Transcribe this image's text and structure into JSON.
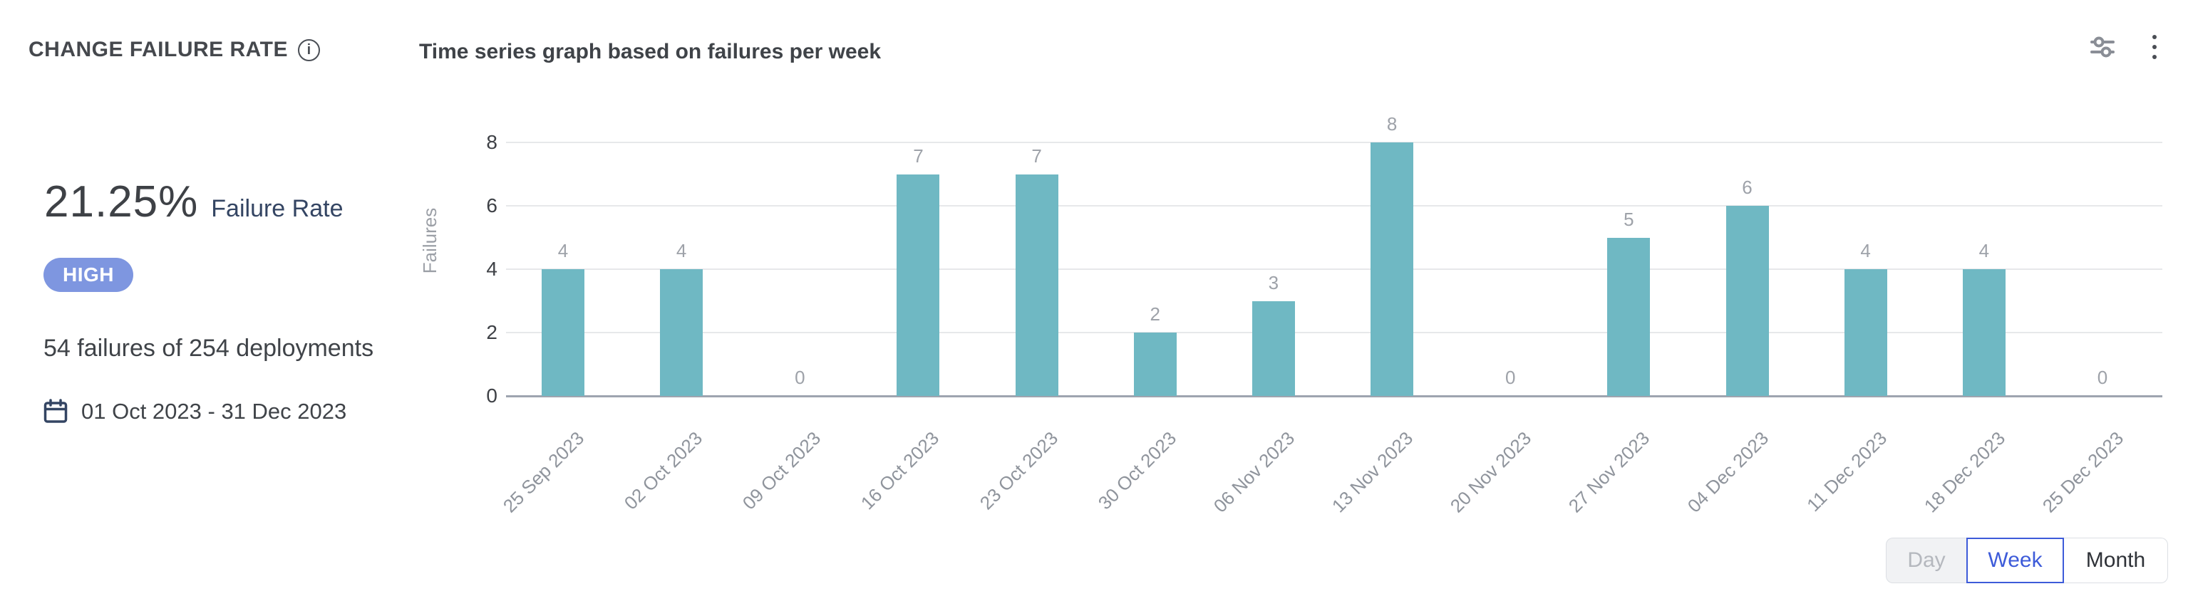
{
  "header": {
    "title": "CHANGE FAILURE RATE",
    "info_icon_glyph": "i",
    "subtitle": "Time series graph based on failures per week"
  },
  "summary": {
    "rate_value": "21.25%",
    "rate_label": "Failure Rate",
    "level_badge": "HIGH",
    "badge_color": "#7E96E0",
    "deployments_text": "54 failures of 254 deployments",
    "date_range": "01 Oct 2023 - 31 Dec 2023"
  },
  "chart_data": {
    "type": "bar",
    "title": "Time series graph based on failures per week",
    "categories": [
      "25 Sep 2023",
      "02 Oct 2023",
      "09 Oct 2023",
      "16 Oct 2023",
      "23 Oct 2023",
      "30 Oct 2023",
      "06 Nov 2023",
      "13 Nov 2023",
      "20 Nov 2023",
      "27 Nov 2023",
      "04 Dec 2023",
      "11 Dec 2023",
      "18 Dec 2023",
      "25 Dec 2023"
    ],
    "values": [
      4,
      4,
      0,
      7,
      7,
      2,
      3,
      8,
      0,
      5,
      6,
      4,
      4,
      0
    ],
    "xlabel": "",
    "ylabel": "Failures",
    "ylim": [
      0,
      8
    ],
    "yticks": [
      0,
      2,
      4,
      6,
      8
    ],
    "grid": true,
    "legend": "none",
    "bar_color": "#6FB8C3",
    "value_label_color": "#9EA2A9",
    "value_labels_shown": true
  },
  "footer": {
    "granularity_toggle": {
      "options": [
        {
          "label": "Day",
          "state": "disabled"
        },
        {
          "label": "Week",
          "state": "selected"
        },
        {
          "label": "Month",
          "state": "default"
        }
      ]
    }
  }
}
